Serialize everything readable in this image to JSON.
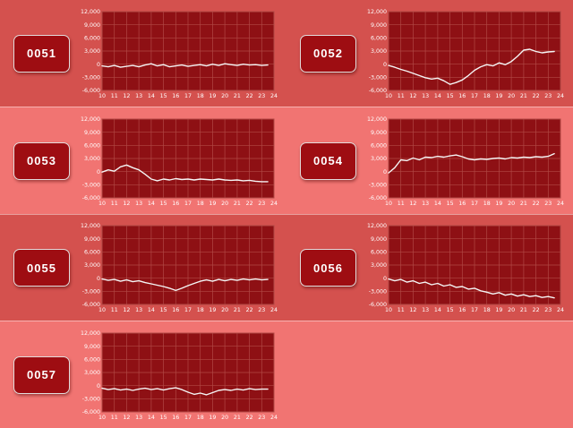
{
  "colors": {
    "row_dark": "#d4514e",
    "row_light": "#f17472",
    "plot_bg": "#8e1014",
    "grid": "#b14844",
    "line": "#f5f5f5",
    "axis_text": "#ffffff",
    "button_bg": "#9e0d12",
    "button_text": "#ffffff",
    "button_border": "#e3dcdc"
  },
  "axis": {
    "x_ticks": [
      "10",
      "11",
      "12",
      "13",
      "14",
      "15",
      "16",
      "17",
      "18",
      "19",
      "20",
      "21",
      "22",
      "23",
      "24"
    ],
    "y_ticks": [
      "12,000",
      "9,000",
      "6,000",
      "3,000",
      "0",
      "-3,000",
      "-6,000"
    ],
    "y_tick_values": [
      12000,
      9000,
      6000,
      3000,
      0,
      -3000,
      -6000
    ],
    "x_min": 10,
    "x_max": 24,
    "y_min": -6000,
    "y_max": 12000,
    "grid": true
  },
  "chart_data": [
    {
      "type": "line",
      "title": "0051",
      "xlabel": "",
      "ylabel": "",
      "xlim": [
        10,
        24
      ],
      "ylim": [
        -6000,
        12000
      ],
      "x": [
        10,
        10.5,
        11,
        11.5,
        12,
        12.5,
        13,
        13.5,
        14,
        14.5,
        15,
        15.5,
        16,
        16.5,
        17,
        17.5,
        18,
        18.5,
        19,
        19.5,
        20,
        20.5,
        21,
        21.5,
        22,
        22.5,
        23,
        23.5
      ],
      "values": [
        -400,
        -600,
        -300,
        -700,
        -500,
        -300,
        -600,
        -200,
        100,
        -400,
        -100,
        -600,
        -400,
        -200,
        -500,
        -300,
        -100,
        -400,
        0,
        -300,
        100,
        -100,
        -300,
        0,
        -200,
        -100,
        -300,
        -200
      ]
    },
    {
      "type": "line",
      "title": "0052",
      "xlabel": "",
      "ylabel": "",
      "xlim": [
        10,
        24
      ],
      "ylim": [
        -6000,
        12000
      ],
      "x": [
        10,
        10.5,
        11,
        11.5,
        12,
        12.5,
        13,
        13.5,
        14,
        14.5,
        15,
        15.5,
        16,
        16.5,
        17,
        17.5,
        18,
        18.5,
        19,
        19.5,
        20,
        20.5,
        21,
        21.5,
        22,
        22.5,
        23,
        23.5
      ],
      "values": [
        -300,
        -700,
        -1200,
        -1600,
        -2100,
        -2600,
        -3100,
        -3400,
        -3200,
        -3800,
        -4600,
        -4200,
        -3600,
        -2600,
        -1400,
        -600,
        -100,
        -400,
        300,
        -100,
        600,
        1800,
        3200,
        3400,
        2900,
        2600,
        2800,
        2900
      ]
    },
    {
      "type": "line",
      "title": "0053",
      "xlabel": "",
      "ylabel": "",
      "xlim": [
        10,
        24
      ],
      "ylim": [
        -6000,
        12000
      ],
      "x": [
        10,
        10.5,
        11,
        11.5,
        12,
        12.5,
        13,
        13.5,
        14,
        14.5,
        15,
        15.5,
        16,
        16.5,
        17,
        17.5,
        18,
        18.5,
        19,
        19.5,
        20,
        20.5,
        21,
        21.5,
        22,
        22.5,
        23,
        23.5
      ],
      "values": [
        -100,
        400,
        100,
        1100,
        1500,
        900,
        400,
        -600,
        -1700,
        -2100,
        -1700,
        -1900,
        -1600,
        -1800,
        -1700,
        -1900,
        -1700,
        -1800,
        -1900,
        -1700,
        -1900,
        -2000,
        -1900,
        -2100,
        -2000,
        -2200,
        -2300,
        -2300
      ]
    },
    {
      "type": "line",
      "title": "0054",
      "xlabel": "",
      "ylabel": "",
      "xlim": [
        10,
        24
      ],
      "ylim": [
        -6000,
        12000
      ],
      "x": [
        10,
        10.5,
        11,
        11.5,
        12,
        12.5,
        13,
        13.5,
        14,
        14.5,
        15,
        15.5,
        16,
        16.5,
        17,
        17.5,
        18,
        18.5,
        19,
        19.5,
        20,
        20.5,
        21,
        21.5,
        22,
        22.5,
        23,
        23.5
      ],
      "values": [
        -300,
        900,
        2700,
        2500,
        3100,
        2700,
        3300,
        3200,
        3500,
        3300,
        3600,
        3800,
        3400,
        2900,
        2700,
        2900,
        2800,
        3000,
        3100,
        2900,
        3200,
        3100,
        3300,
        3200,
        3400,
        3300,
        3500,
        4100
      ]
    },
    {
      "type": "line",
      "title": "0055",
      "xlabel": "",
      "ylabel": "",
      "xlim": [
        10,
        24
      ],
      "ylim": [
        -6000,
        12000
      ],
      "x": [
        10,
        10.5,
        11,
        11.5,
        12,
        12.5,
        13,
        13.5,
        14,
        14.5,
        15,
        15.5,
        16,
        16.5,
        17,
        17.5,
        18,
        18.5,
        19,
        19.5,
        20,
        20.5,
        21,
        21.5,
        22,
        22.5,
        23,
        23.5
      ],
      "values": [
        -200,
        -500,
        -300,
        -700,
        -400,
        -800,
        -600,
        -1000,
        -1300,
        -1600,
        -1900,
        -2300,
        -2800,
        -2300,
        -1700,
        -1200,
        -700,
        -400,
        -700,
        -300,
        -600,
        -300,
        -500,
        -200,
        -400,
        -200,
        -400,
        -300
      ]
    },
    {
      "type": "line",
      "title": "0056",
      "xlabel": "",
      "ylabel": "",
      "xlim": [
        10,
        24
      ],
      "ylim": [
        -6000,
        12000
      ],
      "x": [
        10,
        10.5,
        11,
        11.5,
        12,
        12.5,
        13,
        13.5,
        14,
        14.5,
        15,
        15.5,
        16,
        16.5,
        17,
        17.5,
        18,
        18.5,
        19,
        19.5,
        20,
        20.5,
        21,
        21.5,
        22,
        22.5,
        23,
        23.5
      ],
      "values": [
        -200,
        -600,
        -300,
        -900,
        -600,
        -1200,
        -900,
        -1500,
        -1200,
        -1800,
        -1500,
        -2100,
        -1900,
        -2500,
        -2300,
        -2900,
        -3200,
        -3600,
        -3300,
        -3900,
        -3600,
        -4100,
        -3800,
        -4200,
        -4000,
        -4400,
        -4200,
        -4500
      ]
    },
    {
      "type": "line",
      "title": "0057",
      "xlabel": "",
      "ylabel": "",
      "xlim": [
        10,
        24
      ],
      "ylim": [
        -6000,
        12000
      ],
      "x": [
        10,
        10.5,
        11,
        11.5,
        12,
        12.5,
        13,
        13.5,
        14,
        14.5,
        15,
        15.5,
        16,
        16.5,
        17,
        17.5,
        18,
        18.5,
        19,
        19.5,
        20,
        20.5,
        21,
        21.5,
        22,
        22.5,
        23,
        23.5
      ],
      "values": [
        -600,
        -900,
        -700,
        -1000,
        -800,
        -1100,
        -800,
        -600,
        -900,
        -700,
        -1000,
        -700,
        -500,
        -900,
        -1500,
        -2000,
        -1700,
        -2100,
        -1600,
        -1100,
        -900,
        -1100,
        -800,
        -1000,
        -700,
        -900,
        -800,
        -800
      ]
    }
  ]
}
